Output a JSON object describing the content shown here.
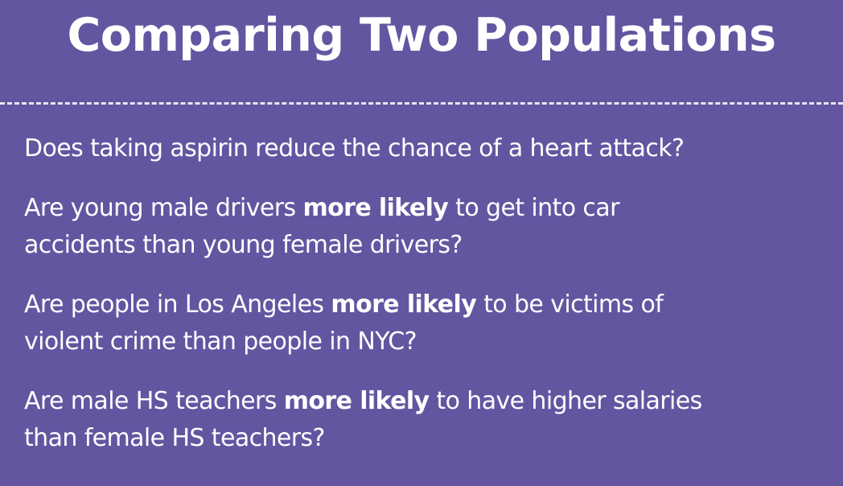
{
  "slide": {
    "title": "Comparing Two Populations",
    "questions": [
      {
        "lines": [
          [
            "Does taking aspirin reduce the chance of a heart attack?"
          ]
        ]
      },
      {
        "before": "Are young male drivers ",
        "emphasis": "more likely",
        "after_line1": " to get into car",
        "line2": "accidents than young female drivers?"
      },
      {
        "before": "Are people in Los Angeles ",
        "emphasis": "more likely",
        "after_line1": " to be victims of",
        "line2": "violent crime than people in NYC?"
      },
      {
        "before": "Are male HS teachers ",
        "emphasis": "more likely",
        "after_line1": " to have higher salaries",
        "line2": "than female HS teachers?"
      }
    ]
  }
}
